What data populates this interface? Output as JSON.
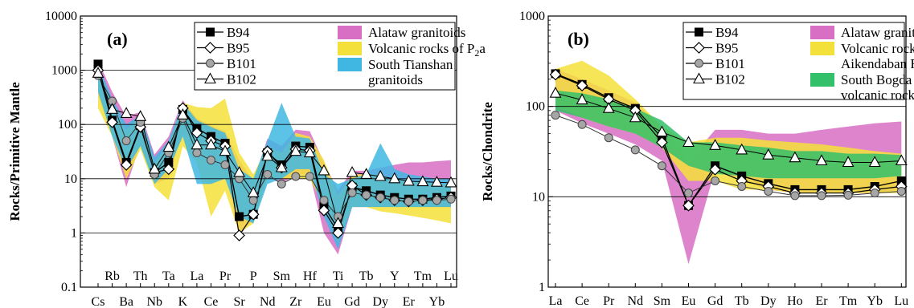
{
  "chart_data": [
    {
      "type": "line",
      "panel_label": "(a)",
      "ylabel": "Rocks/Primitive Mantle",
      "yscale": "log",
      "ylim": [
        0.1,
        10000
      ],
      "ytick_labels": [
        "0.1",
        "1",
        "10",
        "100",
        "1000",
        "10000"
      ],
      "ytick_values": [
        0.1,
        1,
        10,
        100,
        1000,
        10000
      ],
      "grid": "horizontal",
      "legend_position": "top-right",
      "categories": [
        "Cs",
        "Rb",
        "Ba",
        "Th",
        "Nb",
        "Ta",
        "K",
        "La",
        "Ce",
        "Pr",
        "Sr",
        "P",
        "Nd",
        "Sm",
        "Zr",
        "Hf",
        "Eu",
        "Ti",
        "Gd",
        "Tb",
        "Dy",
        "Y",
        "Er",
        "Tm",
        "Yb",
        "Lu"
      ],
      "series": [
        {
          "name": "B94",
          "marker": "square-filled",
          "values": [
            1300,
            120,
            20,
            95,
            13,
            20,
            190,
            85,
            60,
            45,
            2,
            2.2,
            30,
            18,
            40,
            38,
            3.1,
            1.2,
            7,
            6,
            5,
            4.5,
            4.2,
            4.2,
            4.5,
            4.8
          ]
        },
        {
          "name": "B95",
          "marker": "diamond-open",
          "values": [
            1000,
            110,
            18,
            90,
            13,
            15,
            200,
            70,
            50,
            40,
            0.9,
            2.2,
            32,
            16,
            35,
            33,
            2.6,
            1.0,
            7.5,
            5,
            4.5,
            4,
            3.8,
            4,
            4.2,
            4.5
          ]
        },
        {
          "name": "B101",
          "marker": "circle-gray",
          "values": [
            800,
            270,
            50,
            110,
            12,
            30,
            130,
            30,
            22,
            18,
            10,
            4,
            12,
            8,
            11,
            11,
            4,
            2,
            5.5,
            5,
            4.5,
            4,
            3.8,
            4,
            4,
            4.2
          ]
        },
        {
          "name": "B102",
          "marker": "triangle-open",
          "values": [
            880,
            190,
            160,
            140,
            15,
            38,
            150,
            42,
            42,
            32,
            13,
            5.5,
            26,
            16,
            32,
            30,
            14,
            1.5,
            13,
            12,
            11,
            10,
            9,
            8.8,
            8.6,
            8.4
          ]
        }
      ],
      "bands": [
        {
          "name": "Alataw granitoids",
          "color": "#d86fc4",
          "upper": [
            1500,
            400,
            140,
            170,
            28,
            60,
            280,
            130,
            95,
            75,
            22,
            9,
            55,
            40,
            80,
            75,
            20,
            6,
            14,
            14,
            16,
            18,
            20,
            20,
            21,
            22
          ],
          "lower": [
            350,
            60,
            7,
            45,
            8,
            10,
            80,
            25,
            18,
            14,
            0.9,
            1.8,
            12,
            8,
            12,
            12,
            1,
            0.4,
            3,
            3,
            3,
            3,
            3,
            3,
            3,
            3
          ]
        },
        {
          "name": "Volcanic rocks of P2a",
          "name_base": "Volcanic rocks of P",
          "name_sub": "2",
          "name_tail": "a",
          "color": "#f4e03a",
          "upper": [
            1200,
            220,
            80,
            140,
            20,
            45,
            250,
            210,
            200,
            300,
            30,
            12,
            40,
            30,
            70,
            60,
            22,
            5,
            12,
            12,
            11,
            10,
            9,
            9,
            8,
            8
          ],
          "lower": [
            200,
            60,
            10,
            35,
            7,
            4,
            40,
            20,
            2,
            6,
            1,
            1.5,
            10,
            10,
            10,
            10,
            3,
            0.7,
            3,
            3,
            2.5,
            2.3,
            2.1,
            1.9,
            1.7,
            1.5
          ]
        },
        {
          "name": "South Tianshan granitoids",
          "name_lines": [
            "South Tianshan",
            "granitoids"
          ],
          "color": "#3fb7e2",
          "upper": [
            1300,
            300,
            100,
            150,
            25,
            50,
            250,
            120,
            90,
            70,
            15,
            10,
            50,
            250,
            60,
            55,
            12,
            8,
            10,
            12,
            45,
            15,
            12,
            11,
            10,
            10
          ],
          "lower": [
            400,
            60,
            15,
            40,
            8,
            15,
            60,
            8,
            8,
            10,
            2,
            1.5,
            8,
            10,
            15,
            15,
            2,
            0.5,
            3,
            3,
            3,
            3,
            3,
            3,
            3,
            3
          ]
        }
      ]
    },
    {
      "type": "line",
      "panel_label": "(b)",
      "ylabel": "Rocks/Chondrite",
      "yscale": "log",
      "ylim": [
        1,
        1000
      ],
      "ytick_labels": [
        "1",
        "10",
        "100",
        "1000"
      ],
      "ytick_values": [
        1,
        10,
        100,
        1000
      ],
      "grid": "horizontal",
      "legend_position": "top-right",
      "categories": [
        "La",
        "Ce",
        "Pr",
        "Nd",
        "Sm",
        "Eu",
        "Gd",
        "Tb",
        "Dy",
        "Ho",
        "Er",
        "Tm",
        "Yb",
        "Lu"
      ],
      "series": [
        {
          "name": "B94",
          "marker": "square-filled",
          "values": [
            230,
            175,
            125,
            95,
            45,
            8,
            22,
            17,
            14,
            12,
            12,
            12,
            13,
            15
          ]
        },
        {
          "name": "B95",
          "marker": "diamond-open",
          "values": [
            225,
            170,
            120,
            90,
            40,
            8,
            20,
            15,
            13,
            11,
            11,
            11,
            12,
            13
          ]
        },
        {
          "name": "B101",
          "marker": "circle-gray",
          "values": [
            80,
            63,
            45,
            33,
            22,
            11,
            15,
            13,
            11.5,
            10.3,
            10.3,
            10.4,
            11,
            11.5
          ]
        },
        {
          "name": "B102",
          "marker": "triangle-open",
          "values": [
            140,
            118,
            95,
            75,
            52,
            40,
            37,
            33,
            29,
            27,
            25,
            24,
            24,
            25
          ]
        }
      ],
      "bands": [
        {
          "name": "Alataw granitoids",
          "color": "#d86fc4",
          "upper": [
            260,
            200,
            150,
            110,
            60,
            25,
            55,
            55,
            50,
            50,
            55,
            60,
            65,
            68
          ],
          "lower": [
            90,
            65,
            50,
            38,
            25,
            1.8,
            20,
            15,
            12,
            11,
            11,
            11,
            11,
            12
          ]
        },
        {
          "name": "Volcanic rocks of Aikendaban Fm.",
          "name_lines": [
            "Volcanic rocks of",
            "Aikendaban Fm."
          ],
          "color": "#f4e03a",
          "upper": [
            260,
            320,
            220,
            120,
            60,
            40,
            45,
            45,
            42,
            40,
            38,
            35,
            32,
            30
          ],
          "lower": [
            100,
            75,
            60,
            50,
            35,
            15,
            15,
            12,
            12,
            11,
            11,
            11,
            11,
            11
          ]
        },
        {
          "name": "South Bogda volcanic rocks",
          "name_lines": [
            "South Bogda",
            "volcanic rocks"
          ],
          "color": "#33c06a",
          "upper": [
            150,
            140,
            120,
            95,
            70,
            40,
            40,
            37,
            35,
            32,
            32,
            30,
            30,
            29
          ],
          "lower": [
            90,
            75,
            60,
            50,
            35,
            22,
            18,
            17,
            16,
            16,
            16,
            16,
            16,
            17
          ]
        }
      ]
    }
  ]
}
